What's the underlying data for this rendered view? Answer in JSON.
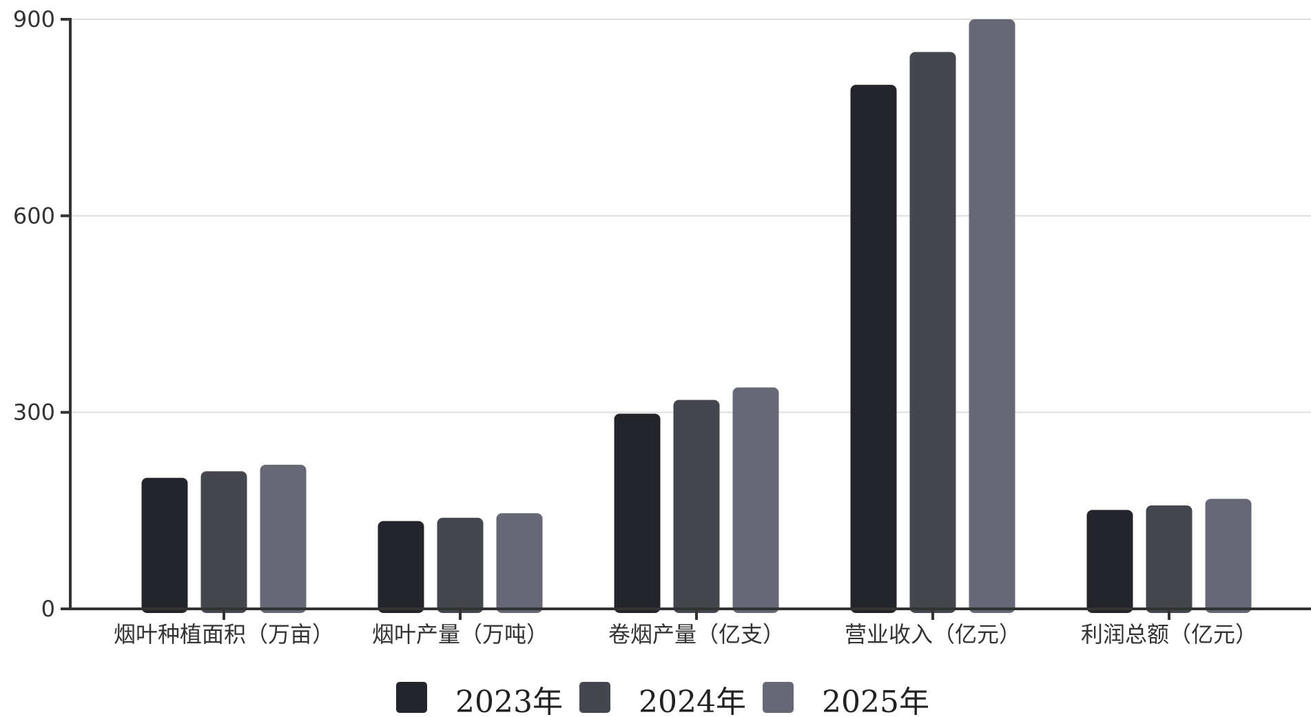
{
  "chart_data": {
    "type": "bar",
    "title": "",
    "xlabel": "",
    "ylabel": "",
    "ylim": [
      0,
      900
    ],
    "yticks": [
      0,
      300,
      600,
      900
    ],
    "grid": true,
    "legend_position": "bottom",
    "categories": [
      "烟叶种植面积（万亩）",
      "烟叶产量（万吨）",
      "卷烟产量（亿支）",
      "营业收入（亿元）",
      "利润总额（亿元）"
    ],
    "series": [
      {
        "name": "2023年",
        "color": "#24252a",
        "values": [
          200,
          134,
          298,
          800,
          151
        ]
      },
      {
        "name": "2024年",
        "color": "#45474f",
        "values": [
          210,
          139,
          319,
          850,
          158
        ]
      },
      {
        "name": "2025年",
        "color": "#666875",
        "values": [
          220,
          146,
          338,
          900,
          168
        ]
      }
    ]
  }
}
